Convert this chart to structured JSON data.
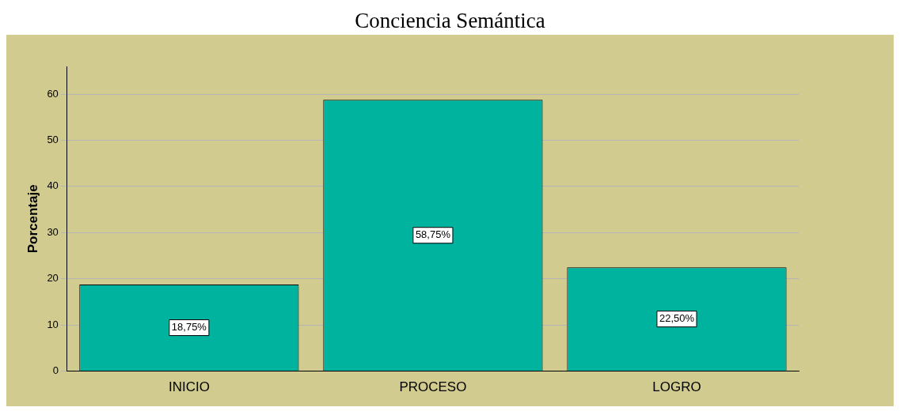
{
  "chart_data": {
    "type": "bar",
    "title": "Conciencia Semántica",
    "ylabel": "Porcentaje",
    "categories": [
      "INICIO",
      "PROCESO",
      "LOGRO"
    ],
    "values": [
      18.75,
      58.75,
      22.5
    ],
    "value_labels": [
      "18,75%",
      "58,75%",
      "22,50%"
    ],
    "color": "#00b39f",
    "ylim": [
      0,
      66
    ],
    "yticks": [
      0,
      10,
      20,
      30,
      40,
      50,
      60
    ],
    "grid": "y"
  }
}
